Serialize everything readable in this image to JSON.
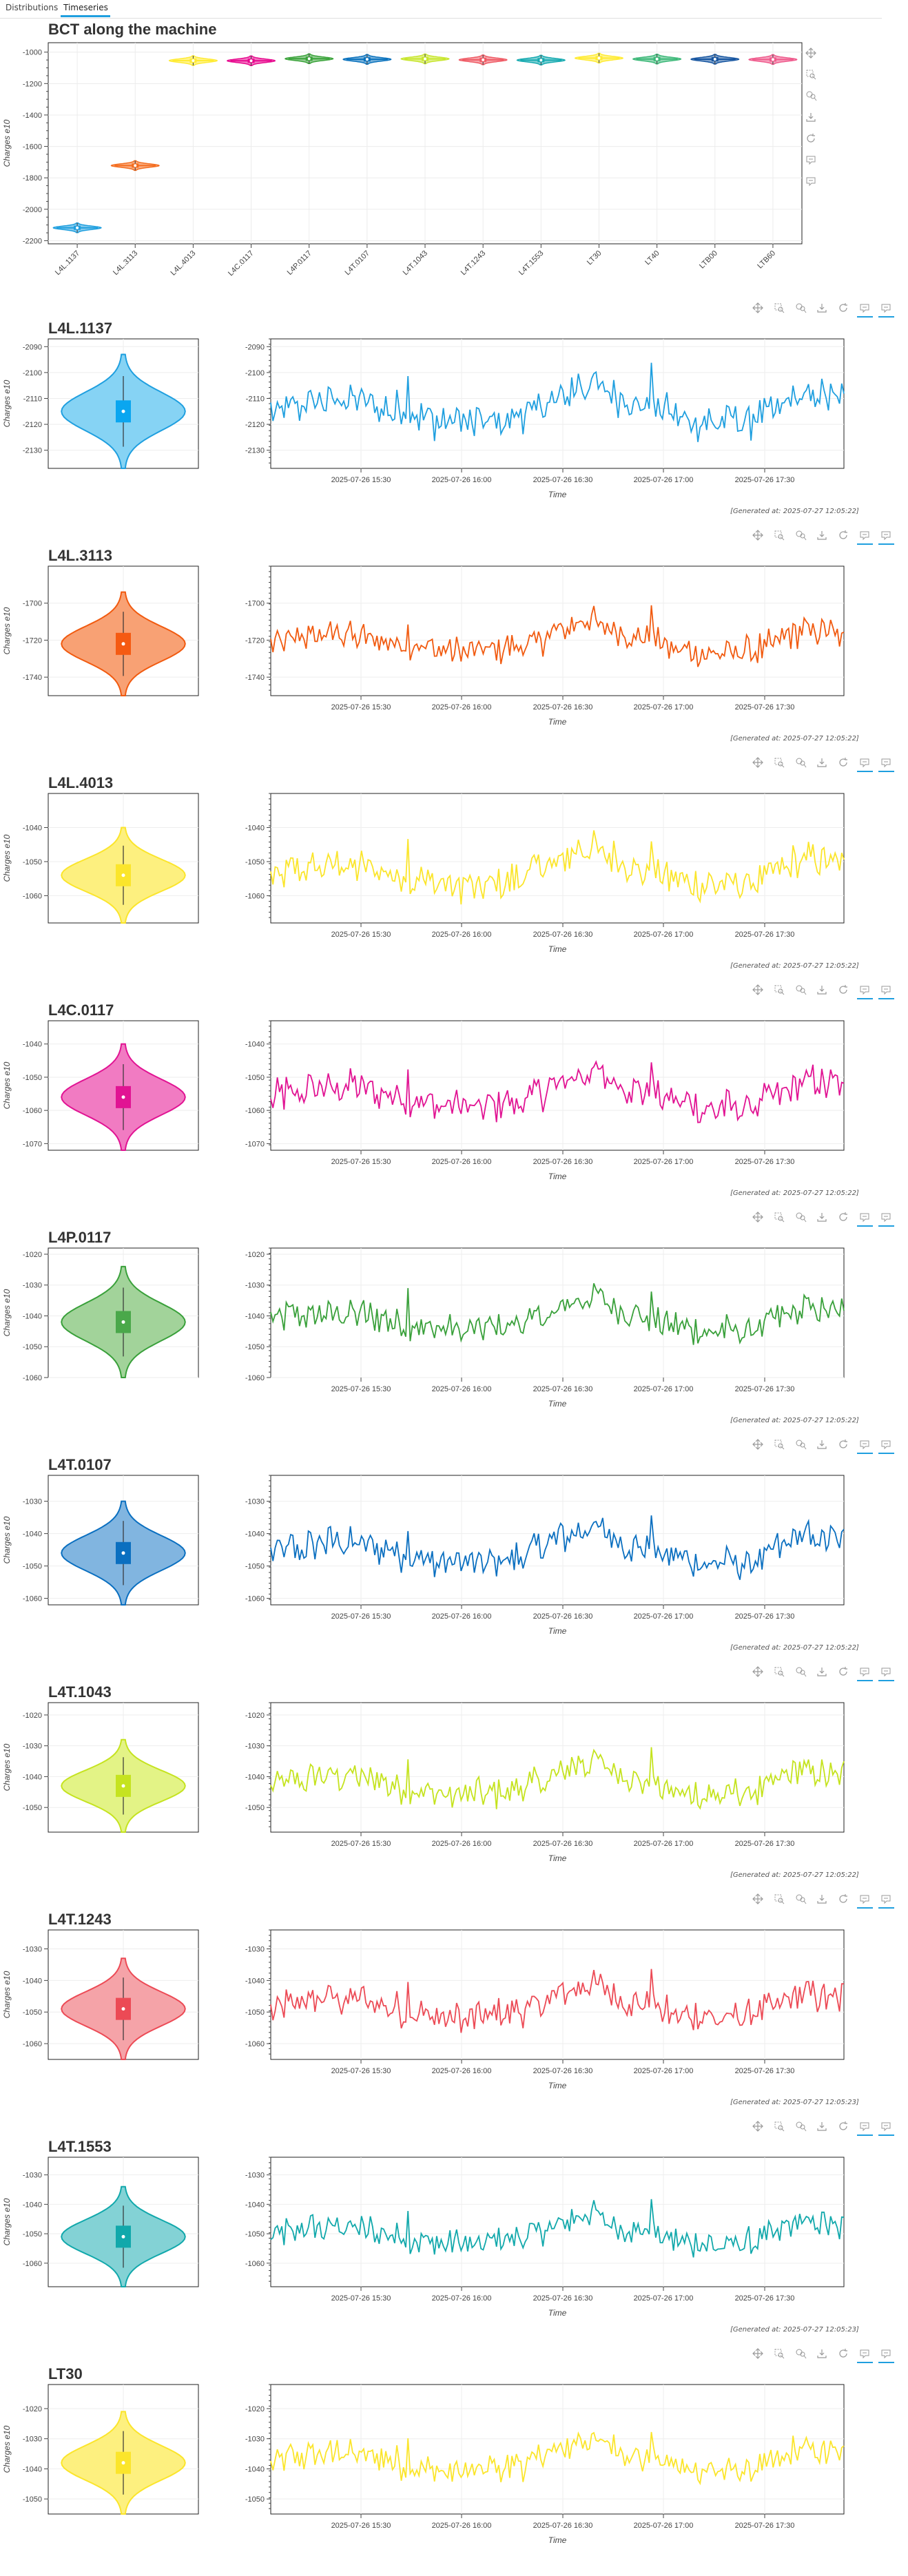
{
  "tabs": [
    {
      "label": "Distributions"
    },
    {
      "label": "Timeseries"
    }
  ],
  "overview": {
    "title": "BCT along the machine",
    "ylabel": "Charges e10",
    "y_ticks": [
      -1000,
      -1200,
      -1400,
      -1600,
      -1800,
      -2000,
      -2200
    ]
  },
  "toolbar_icons": [
    "pan-icon",
    "box-zoom-icon",
    "wheel-zoom-icon",
    "save-icon",
    "reset-icon",
    "hover-icon",
    "hover-icon"
  ],
  "chart_data": [
    {
      "type": "violin",
      "title": "BCT along the machine",
      "ylabel": "Charges e10",
      "ylim": [
        -2220,
        -940
      ],
      "categories": [
        "L4L.1137",
        "L4L.3113",
        "L4L.4013",
        "L4C.0117",
        "L4P.0117",
        "L4T.0107",
        "L4T.1043",
        "L4T.1243",
        "L4T.1553",
        "LT30",
        "LT40",
        "LTB00",
        "LTB60"
      ],
      "values": [
        -2118,
        -1722,
        -1054,
        -1055,
        -1042,
        -1046,
        -1043,
        -1049,
        -1051,
        -1038,
        -1044,
        -1045,
        -1047
      ],
      "colors": [
        "#1f9fdf",
        "#f46d1f",
        "#ffeb33",
        "#e7088e",
        "#3aa33a",
        "#0a72bd",
        "#c8e62e",
        "#ef5a64",
        "#16aab0",
        "#ffeb33",
        "#3cb878",
        "#1655a0",
        "#ef5a8c"
      ]
    }
  ],
  "panels": [
    {
      "name": "L4L.1137",
      "color": "#1f9fdf",
      "fill": "#86d3f4",
      "box": "#0aa6f0",
      "mean": -2115,
      "sd": 7,
      "ylim": [
        -2137,
        -2087
      ],
      "yticks": [
        -2090,
        -2100,
        -2110,
        -2120,
        -2130
      ],
      "generated": "[Generated at: 2025-07-27 12:05:22]"
    },
    {
      "name": "L4L.3113",
      "color": "#f15a0f",
      "fill": "#f8a174",
      "box": "#f55a12",
      "mean": -1722,
      "sd": 8,
      "ylim": [
        -1750,
        -1680
      ],
      "yticks": [
        -1700,
        -1720,
        -1740
      ],
      "generated": "[Generated at: 2025-07-27 12:05:22]"
    },
    {
      "name": "L4L.4013",
      "color": "#fbe52b",
      "fill": "#fdf07f",
      "box": "#fbe52b",
      "mean": -1054,
      "sd": 5,
      "ylim": [
        -1068,
        -1030
      ],
      "yticks": [
        -1040,
        -1050,
        -1060
      ],
      "generated": "[Generated at: 2025-07-27 12:05:22]"
    },
    {
      "name": "L4C.0117",
      "color": "#e11393",
      "fill": "#f17bc2",
      "box": "#e11393",
      "mean": -1056,
      "sd": 5,
      "ylim": [
        -1072,
        -1033
      ],
      "yticks": [
        -1040,
        -1050,
        -1060,
        -1070
      ],
      "generated": "[Generated at: 2025-07-27 12:05:22]"
    },
    {
      "name": "L4P.0117",
      "color": "#39a03a",
      "fill": "#a2d39a",
      "box": "#4aa84a",
      "mean": -1042,
      "sd": 5,
      "ylim": [
        -1060,
        -1018
      ],
      "yticks": [
        -1020,
        -1030,
        -1040,
        -1050,
        -1060
      ],
      "generated": "[Generated at: 2025-07-27 12:05:22]"
    },
    {
      "name": "L4T.0107",
      "color": "#0a6fc0",
      "fill": "#81b5e0",
      "box": "#0a6fc0",
      "mean": -1046,
      "sd": 5,
      "ylim": [
        -1062,
        -1022
      ],
      "yticks": [
        -1030,
        -1040,
        -1050,
        -1060
      ],
      "generated": "[Generated at: 2025-07-27 12:05:22]"
    },
    {
      "name": "L4T.1043",
      "color": "#c5e31f",
      "fill": "#e3f386",
      "box": "#c5e31f",
      "mean": -1043,
      "sd": 5,
      "ylim": [
        -1058,
        -1016
      ],
      "yticks": [
        -1020,
        -1030,
        -1040,
        -1050
      ],
      "generated": "[Generated at: 2025-07-27 12:05:22]"
    },
    {
      "name": "L4T.1243",
      "color": "#ec4a55",
      "fill": "#f5a3a8",
      "box": "#ec4a55",
      "mean": -1049,
      "sd": 5,
      "ylim": [
        -1065,
        -1024
      ],
      "yticks": [
        -1030,
        -1040,
        -1050,
        -1060
      ],
      "generated": "[Generated at: 2025-07-27 12:05:23]"
    },
    {
      "name": "L4T.1553",
      "color": "#11a8ab",
      "fill": "#83d2d5",
      "box": "#11a8ab",
      "mean": -1051,
      "sd": 5,
      "ylim": [
        -1068,
        -1024
      ],
      "yticks": [
        -1030,
        -1040,
        -1050,
        -1060
      ],
      "generated": "[Generated at: 2025-07-27 12:05:23]"
    },
    {
      "name": "LT30",
      "color": "#fbe52b",
      "fill": "#fdf07f",
      "box": "#fbe52b",
      "mean": -1038,
      "sd": 5,
      "ylim": [
        -1055,
        -1012
      ],
      "yticks": [
        -1020,
        -1030,
        -1040,
        -1050
      ],
      "generated": ""
    }
  ],
  "timeseries": {
    "xlabel": "Time",
    "ylabel": "Charges e10",
    "x_ticks": [
      "2025-07-26 15:30",
      "2025-07-26 16:00",
      "2025-07-26 16:30",
      "2025-07-26 17:00",
      "2025-07-26 17:30"
    ]
  }
}
